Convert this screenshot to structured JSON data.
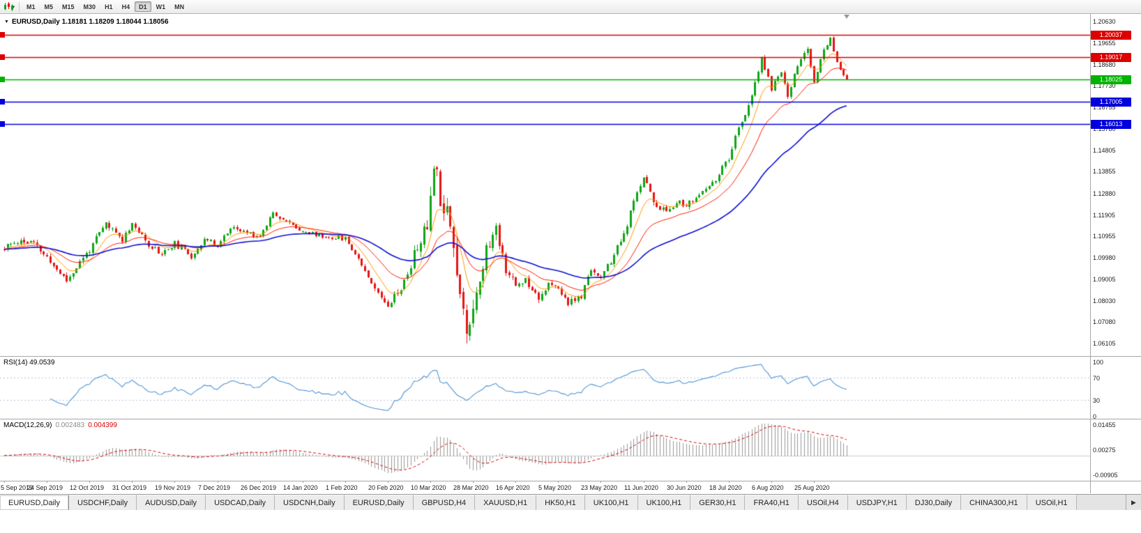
{
  "icons": {
    "collapse": "▼",
    "caret": "▾",
    "tab_scroll_right": "▶"
  },
  "toolbar": {
    "timeframes": [
      "M1",
      "M5",
      "M15",
      "M30",
      "H1",
      "H4",
      "D1",
      "W1",
      "MN"
    ],
    "active": "D1"
  },
  "chart": {
    "title": "EURUSD,Daily 1.18181 1.18209 1.18044 1.18056"
  },
  "chart_data": {
    "type": "candlestick",
    "symbol": "EURUSD",
    "timeframe": "Daily",
    "open": "1.18181",
    "high": "1.18209",
    "low": "1.18044",
    "close": "1.18056",
    "scale": {
      "max": 1.2063,
      "min": 1.06105
    },
    "price_axis": [
      "1.20630",
      "1.19655",
      "1.18680",
      "1.17730",
      "1.16755",
      "1.15780",
      "1.14805",
      "1.13855",
      "1.12880",
      "1.11905",
      "1.10955",
      "1.09980",
      "1.09005",
      "1.08030",
      "1.07080",
      "1.06105"
    ],
    "hlines": [
      {
        "price": "1.20037",
        "color": "#dd0000"
      },
      {
        "price": "1.19017",
        "color": "#dd0000"
      },
      {
        "price": "1.18025",
        "color": "#00b300"
      },
      {
        "price": "1.17005",
        "color": "#0000dd"
      },
      {
        "price": "1.16013",
        "color": "#0000dd"
      }
    ],
    "date_axis": [
      "5 Sep 2019",
      "24 Sep 2019",
      "12 Oct 2019",
      "31 Oct 2019",
      "19 Nov 2019",
      "7 Dec 2019",
      "26 Dec 2019",
      "14 Jan 2020",
      "1 Feb 2020",
      "20 Feb 2020",
      "10 Mar 2020",
      "28 Mar 2020",
      "16 Apr 2020",
      "5 May 2020",
      "23 May 2020",
      "11 Jun 2020",
      "30 Jun 2020",
      "18 Jul 2020",
      "6 Aug 2020",
      "25 Aug 2020"
    ],
    "bars": 258,
    "seed": 11,
    "anchors": [
      [
        0,
        1.1035,
        0.002
      ],
      [
        4,
        1.1075,
        0.0018
      ],
      [
        9,
        1.1062,
        0.0016
      ],
      [
        13,
        1.0995,
        0.0016
      ],
      [
        19,
        1.0895,
        0.0015
      ],
      [
        23,
        1.0975,
        0.0016
      ],
      [
        26,
        1.1035,
        0.0016
      ],
      [
        31,
        1.115,
        0.0015
      ],
      [
        36,
        1.108,
        0.0013
      ],
      [
        39,
        1.1155,
        0.0013
      ],
      [
        43,
        1.107,
        0.0013
      ],
      [
        48,
        1.1015,
        0.0012
      ],
      [
        52,
        1.106,
        0.0012
      ],
      [
        57,
        1.1005,
        0.0012
      ],
      [
        61,
        1.108,
        0.0012
      ],
      [
        65,
        1.1055,
        0.0012
      ],
      [
        69,
        1.113,
        0.0012
      ],
      [
        73,
        1.1115,
        0.0011
      ],
      [
        78,
        1.1095,
        0.0011
      ],
      [
        82,
        1.1205,
        0.0011
      ],
      [
        86,
        1.116,
        0.001
      ],
      [
        91,
        1.112,
        0.001
      ],
      [
        97,
        1.1093,
        0.001
      ],
      [
        104,
        1.1085,
        0.001
      ],
      [
        109,
        1.097,
        0.0012
      ],
      [
        114,
        1.0835,
        0.0013
      ],
      [
        117,
        1.079,
        0.0015
      ],
      [
        122,
        1.0885,
        0.0022
      ],
      [
        126,
        1.105,
        0.003
      ],
      [
        129,
        1.1135,
        0.0045
      ],
      [
        131,
        1.145,
        0.005
      ],
      [
        133,
        1.128,
        0.005
      ],
      [
        136,
        1.1185,
        0.005
      ],
      [
        138,
        1.092,
        0.0058
      ],
      [
        141,
        1.066,
        0.005
      ],
      [
        144,
        1.085,
        0.0042
      ],
      [
        147,
        1.103,
        0.0036
      ],
      [
        150,
        1.113,
        0.0028
      ],
      [
        153,
        1.095,
        0.0022
      ],
      [
        156,
        1.087,
        0.0018
      ],
      [
        159,
        1.09,
        0.0016
      ],
      [
        163,
        1.082,
        0.0015
      ],
      [
        166,
        1.0875,
        0.0015
      ],
      [
        169,
        1.0855,
        0.0015
      ],
      [
        172,
        1.0795,
        0.0014
      ],
      [
        176,
        1.082,
        0.0013
      ],
      [
        179,
        1.095,
        0.0013
      ],
      [
        182,
        1.0905,
        0.0013
      ],
      [
        185,
        1.098,
        0.0013
      ],
      [
        189,
        1.11,
        0.0015
      ],
      [
        193,
        1.129,
        0.0017
      ],
      [
        195,
        1.137,
        0.0018
      ],
      [
        198,
        1.125,
        0.0017
      ],
      [
        202,
        1.12,
        0.0014
      ],
      [
        205,
        1.1255,
        0.0013
      ],
      [
        208,
        1.123,
        0.0012
      ],
      [
        212,
        1.128,
        0.0011
      ],
      [
        216,
        1.133,
        0.0011
      ],
      [
        219,
        1.14,
        0.0012
      ],
      [
        221,
        1.144,
        0.0013
      ],
      [
        224,
        1.158,
        0.0015
      ],
      [
        228,
        1.172,
        0.0015
      ],
      [
        231,
        1.1895,
        0.0015
      ],
      [
        234,
        1.176,
        0.0013
      ],
      [
        237,
        1.184,
        0.0013
      ],
      [
        239,
        1.173,
        0.0013
      ],
      [
        243,
        1.1905,
        0.0013
      ],
      [
        245,
        1.193,
        0.0013
      ],
      [
        247,
        1.179,
        0.0011
      ],
      [
        250,
        1.193,
        0.0012
      ],
      [
        252,
        1.2,
        0.0011
      ],
      [
        253,
        1.193,
        0.001
      ],
      [
        255,
        1.184,
        0.0009
      ],
      [
        257,
        1.1806,
        0.0007
      ]
    ],
    "moving_averages": [
      {
        "type": "ema",
        "period": 8,
        "color": "#ff9900",
        "width": 1
      },
      {
        "type": "ema",
        "period": 20,
        "color": "#ff1a00",
        "width": 1
      },
      {
        "type": "ema",
        "period": 50,
        "color": "#0f0fd0",
        "width": 1.6
      }
    ],
    "colors": {
      "up": "#0fa517",
      "down": "#e51515",
      "hist": "#999999",
      "signal": "#d40000",
      "rsi": "#4f94d4",
      "rsi_levels": "#b9c2d6",
      "zero_line": "#cccccc"
    },
    "indicators": {
      "rsi": {
        "label": "RSI(14) 49.0539",
        "period": 14,
        "levels": [
          70,
          30
        ],
        "axis": [
          "100",
          "70",
          "30",
          "0"
        ],
        "scale": {
          "max": 100,
          "min": 0
        }
      },
      "macd": {
        "label": "MACD(12,26,9)",
        "value_main": "0.002483",
        "value_signal": "0.004399",
        "fast": 12,
        "slow": 26,
        "signal": 9,
        "axis": [
          "0.01455",
          "0.00275",
          "-0.00905"
        ],
        "scale": {
          "max": 0.0152,
          "min": -0.0102
        }
      }
    }
  },
  "tabs": {
    "active": "EURUSD,Daily",
    "items": [
      "EURUSD,Daily",
      "USDCHF,Daily",
      "AUDUSD,Daily",
      "USDCAD,Daily",
      "USDCNH,Daily",
      "EURUSD,Daily",
      "GBPUSD,H4",
      "XAUUSD,H1",
      "HK50,H1",
      "UK100,H1",
      "UK100,H1",
      "GER30,H1",
      "FRA40,H1",
      "USOil,H4",
      "USDJPY,H1",
      "DJ30,Daily",
      "CHINA300,H1",
      "USOil,H1"
    ]
  }
}
